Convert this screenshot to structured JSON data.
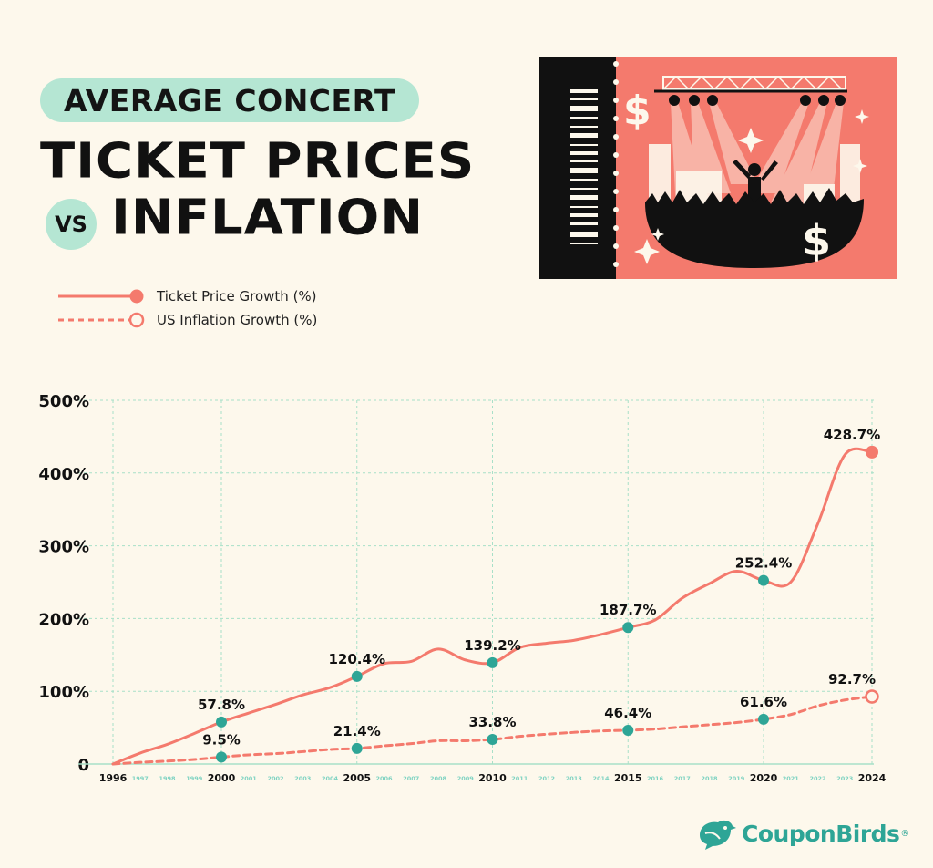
{
  "title": {
    "pill": "AVERAGE CONCERT",
    "line1": "TICKET PRICES",
    "vs": "VS",
    "line2": "INFLATION"
  },
  "legend": [
    {
      "label": "Ticket Price Growth (%)",
      "style": "solid"
    },
    {
      "label": "US Inflation Growth (%)",
      "style": "dashed"
    }
  ],
  "ticket_art": {
    "dollar_symbol": "$"
  },
  "colors": {
    "ticket_line": "#f47a6d",
    "ticket_panel": "#f47a6d",
    "marker": "#2ea596",
    "pill": "#b5e6d3",
    "grid": "#a8e0c8",
    "background": "#fdf8ec",
    "minor_tick": "#7fd3c2"
  },
  "brand": {
    "name": "CouponBirds",
    "reg": "®"
  },
  "chart_data": {
    "type": "line",
    "title": "AVERAGE CONCERT TICKET PRICES VS INFLATION",
    "ylim": [
      0,
      500
    ],
    "yticks": [
      0,
      100,
      200,
      300,
      400,
      500
    ],
    "ytick_labels": [
      "0",
      "100%",
      "200%",
      "300%",
      "400%",
      "500%"
    ],
    "x": [
      1996,
      1997,
      1998,
      1999,
      2000,
      2001,
      2002,
      2003,
      2004,
      2005,
      2006,
      2007,
      2008,
      2009,
      2010,
      2011,
      2012,
      2013,
      2014,
      2015,
      2016,
      2017,
      2018,
      2019,
      2020,
      2021,
      2022,
      2023,
      2024
    ],
    "major_years": [
      1996,
      2000,
      2005,
      2010,
      2015,
      2020,
      2024
    ],
    "grid_x": [
      1996,
      2000,
      2005,
      2010,
      2015,
      2020,
      2024
    ],
    "series": [
      {
        "name": "Ticket Price Growth (%)",
        "style": "solid",
        "values": [
          0,
          15,
          27,
          42,
          57.8,
          70,
          82,
          95,
          105,
          120.4,
          138,
          141,
          158,
          143,
          139.2,
          160,
          166,
          170,
          178,
          187.7,
          198,
          228,
          248,
          265,
          252.4,
          250,
          330,
          425,
          428.7
        ],
        "labeled_points": [
          {
            "year": 2000,
            "value": 57.8,
            "label": "57.8%"
          },
          {
            "year": 2005,
            "value": 120.4,
            "label": "120.4%"
          },
          {
            "year": 2010,
            "value": 139.2,
            "label": "139.2%"
          },
          {
            "year": 2015,
            "value": 187.7,
            "label": "187.7%"
          },
          {
            "year": 2020,
            "value": 252.4,
            "label": "252.4%"
          },
          {
            "year": 2024,
            "value": 428.7,
            "label": "428.7%"
          }
        ]
      },
      {
        "name": "US Inflation Growth (%)",
        "style": "dashed",
        "values": [
          0,
          2.3,
          4,
          6.3,
          9.5,
          12.6,
          14.3,
          17,
          20,
          21.4,
          25,
          28,
          32,
          32,
          33.8,
          38,
          41,
          43.5,
          45.5,
          46.4,
          48,
          51,
          54,
          57,
          61.6,
          68,
          80,
          88,
          92.7
        ],
        "labeled_points": [
          {
            "year": 2000,
            "value": 9.5,
            "label": "9.5%"
          },
          {
            "year": 2005,
            "value": 21.4,
            "label": "21.4%"
          },
          {
            "year": 2010,
            "value": 33.8,
            "label": "33.8%"
          },
          {
            "year": 2015,
            "value": 46.4,
            "label": "46.4%"
          },
          {
            "year": 2020,
            "value": 61.6,
            "label": "61.6%"
          },
          {
            "year": 2024,
            "value": 92.7,
            "label": "92.7%"
          }
        ]
      }
    ]
  }
}
